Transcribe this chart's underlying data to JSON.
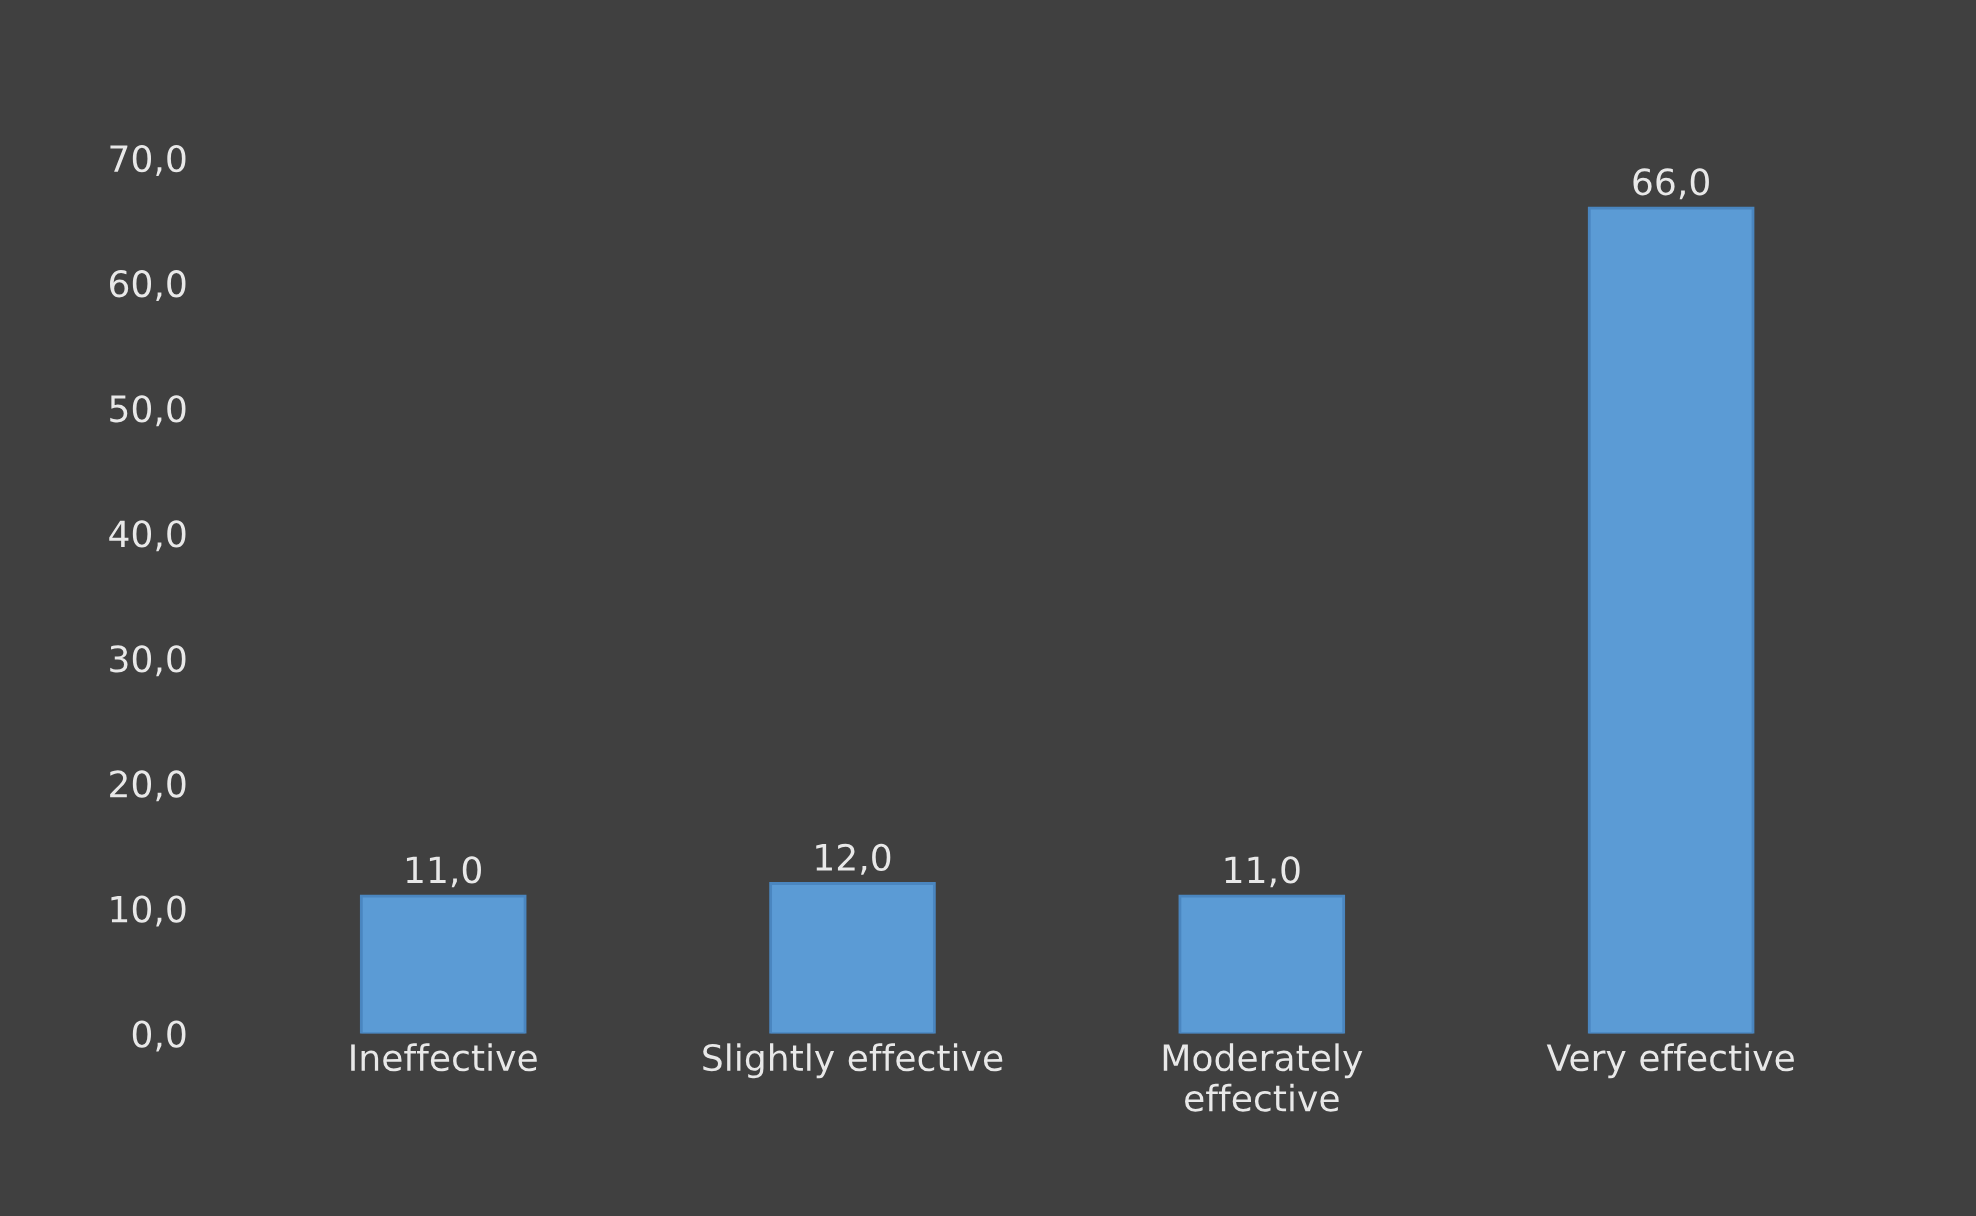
{
  "chart_data": {
    "type": "bar",
    "categories": [
      "Ineffective",
      "Slightly effective",
      "Moderately\neffective",
      "Very effective"
    ],
    "values": [
      11.0,
      12.0,
      11.0,
      66.0
    ],
    "value_labels": [
      "11,0",
      "12,0",
      "11,0",
      "66,0"
    ],
    "color": "#5b9bd5",
    "ylim": [
      0,
      70
    ],
    "yticks": [
      {
        "value": 0,
        "label": "0,0"
      },
      {
        "value": 10,
        "label": "10,0"
      },
      {
        "value": 20,
        "label": "20,0"
      },
      {
        "value": 30,
        "label": "30,0"
      },
      {
        "value": 40,
        "label": "40,0"
      },
      {
        "value": 50,
        "label": "50,0"
      },
      {
        "value": 60,
        "label": "60,0"
      },
      {
        "value": 70,
        "label": "70,0"
      }
    ],
    "grid": false,
    "legend": false
  }
}
